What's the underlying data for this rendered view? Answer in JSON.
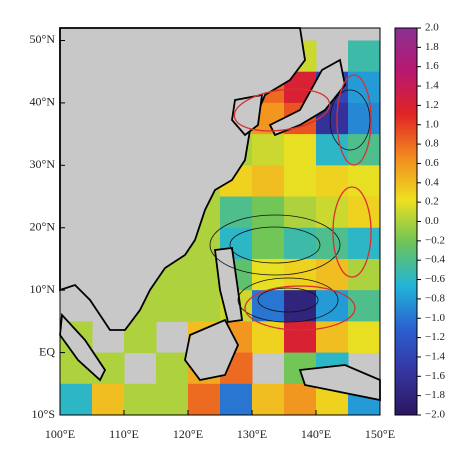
{
  "chart_data": {
    "type": "heatmap",
    "x": [
      102.5,
      107.5,
      112.5,
      117.5,
      122.5,
      127.5,
      132.5,
      137.5,
      142.5,
      147.5
    ],
    "y": [
      47.5,
      42.5,
      37.5,
      32.5,
      27.5,
      22.5,
      17.5,
      12.5,
      7.5,
      2.5,
      -2.5,
      -7.5
    ],
    "values": [
      [
        null,
        null,
        null,
        null,
        null,
        null,
        null,
        0.1,
        null,
        -0.5
      ],
      [
        null,
        null,
        null,
        null,
        null,
        0,
        0.8,
        1.2,
        -1.4,
        -0.8
      ],
      [
        null,
        null,
        null,
        null,
        0,
        0,
        0.6,
        0.9,
        -1.6,
        -0.9
      ],
      [
        null,
        null,
        null,
        null,
        0,
        0,
        0.1,
        0.2,
        -0.6,
        -0.4
      ],
      [
        null,
        null,
        null,
        null,
        0,
        0.3,
        0.4,
        0.2,
        0.3,
        0.2
      ],
      [
        null,
        null,
        null,
        0,
        0,
        -0.4,
        -0.2,
        0,
        0.1,
        0.3
      ],
      [
        null,
        null,
        null,
        0,
        0,
        -0.6,
        -0.2,
        -0.5,
        -0.4,
        -0.6
      ],
      [
        null,
        null,
        0,
        0,
        0,
        -0.3,
        0.2,
        0.3,
        0.4,
        0
      ],
      [
        null,
        null,
        0,
        0,
        0,
        0.1,
        -1,
        -1.8,
        -0.8,
        -0.4
      ],
      [
        0,
        null,
        0,
        null,
        0.4,
        0.6,
        0.3,
        1.2,
        0.4,
        0.2
      ],
      [
        0,
        0,
        null,
        0,
        0.5,
        0.8,
        null,
        -0.2,
        -0.6,
        null
      ],
      [
        -0.6,
        0.4,
        0,
        0,
        0.8,
        -1,
        0.4,
        0.6,
        0.3,
        -0.8
      ]
    ],
    "xlim": [
      100,
      150
    ],
    "ylim": [
      -10,
      52
    ],
    "xticks": [
      {
        "value": 100,
        "label": "100°E"
      },
      {
        "value": 110,
        "label": "110°E"
      },
      {
        "value": 120,
        "label": "120°E"
      },
      {
        "value": 130,
        "label": "130°E"
      },
      {
        "value": 140,
        "label": "140°E"
      },
      {
        "value": 150,
        "label": "150°E"
      }
    ],
    "yticks": [
      {
        "value": -10,
        "label": "10°S"
      },
      {
        "value": 0,
        "label": "EQ"
      },
      {
        "value": 10,
        "label": "10°N"
      },
      {
        "value": 20,
        "label": "20°N"
      },
      {
        "value": 30,
        "label": "30°N"
      },
      {
        "value": 40,
        "label": "40°N"
      },
      {
        "value": 50,
        "label": "50°N"
      }
    ],
    "zlim": [
      -2,
      2
    ],
    "zticks": [
      {
        "value": 2,
        "label": "2.0"
      },
      1.8,
      1.6,
      1.4,
      1.2,
      {
        "value": 1,
        "label": "1.0"
      },
      0.8,
      0.6,
      0.4,
      0.2,
      {
        "value": 0,
        "label": "0.0"
      },
      {
        "value": -0.2,
        "label": "−0.2"
      },
      {
        "value": -0.4,
        "label": "−0.4"
      },
      {
        "value": -0.6,
        "label": "−0.6"
      },
      {
        "value": -0.8,
        "label": "−0.8"
      },
      {
        "value": -1,
        "label": "−1.0"
      },
      {
        "value": -1.2,
        "label": "−1.2"
      },
      {
        "value": -1.4,
        "label": "−1.4"
      },
      {
        "value": -1.6,
        "label": "−1.6"
      },
      {
        "value": -1.8,
        "label": "−1.8"
      },
      {
        "value": -2,
        "label": "−2.0"
      }
    ],
    "colors": [
      "#2b1660",
      "#3535a0",
      "#2a60d0",
      "#22b4d8",
      "#6cc45a",
      "#eee020",
      "#f28a20",
      "#e02424",
      "#b81870",
      "#8a3294"
    ],
    "land_color": "#c8c8c8"
  }
}
